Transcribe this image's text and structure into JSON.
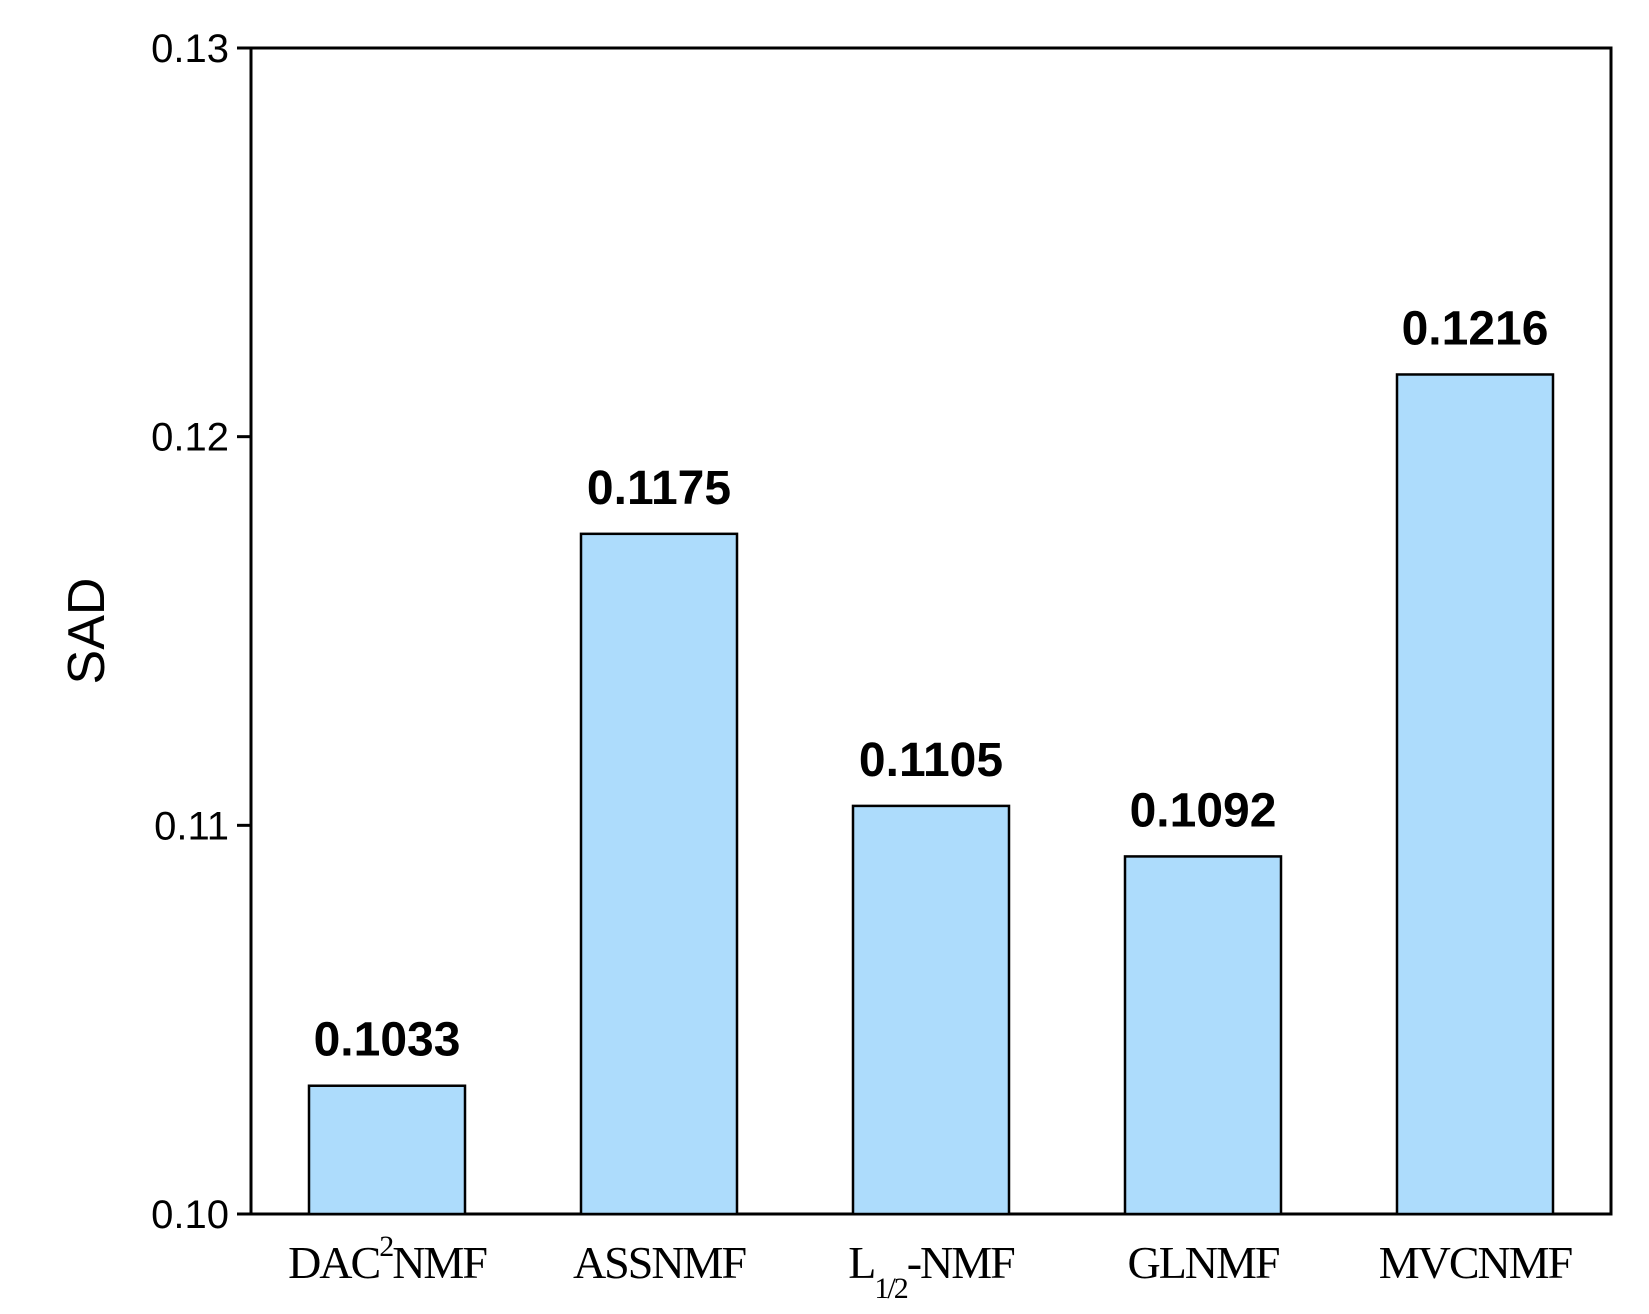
{
  "chart_data": {
    "type": "bar",
    "categories": [
      {
        "main": "DAC",
        "sup": "2",
        "rest": "NMF"
      },
      {
        "main": "ASSNMF"
      },
      {
        "main": "L",
        "sub": "1/2",
        "rest": "-NMF"
      },
      {
        "main": "GLNMF"
      },
      {
        "main": "MVCNMF"
      }
    ],
    "values": [
      0.1033,
      0.1175,
      0.1105,
      0.1092,
      0.1216
    ],
    "value_labels": [
      "0.1033",
      "0.1175",
      "0.1105",
      "0.1092",
      "0.1216"
    ],
    "title": "",
    "xlabel": "",
    "ylabel": "SAD",
    "ylim": [
      0.1,
      0.13
    ],
    "yticks": [
      0.1,
      0.11,
      0.12,
      0.13
    ],
    "ytick_labels": [
      "0.10",
      "0.11",
      "0.12",
      "0.13"
    ],
    "grid": false,
    "legend": "none",
    "colors": {
      "bar_fill": "#addcfc",
      "bar_stroke": "#000000",
      "axis": "#000000"
    }
  }
}
